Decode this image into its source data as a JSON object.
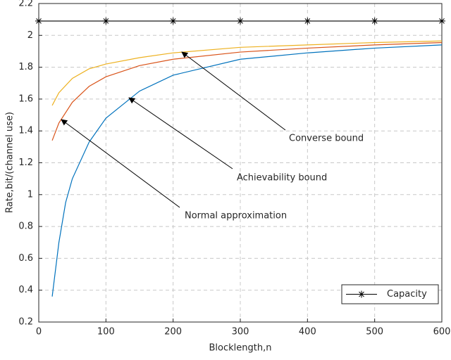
{
  "chart_data": {
    "type": "line",
    "xlabel": "Blocklength,n",
    "ylabel": "Rate,bit/(channel use)",
    "xlim": [
      0,
      600
    ],
    "xticks": [
      0,
      100,
      200,
      300,
      400,
      500,
      600
    ],
    "ylim": [
      0.2,
      2.2
    ],
    "yticks": [
      0.2,
      0.4,
      0.6,
      0.8,
      1,
      1.2,
      1.4,
      1.6,
      1.8,
      2,
      2.2
    ],
    "grid": true,
    "legend": "lower right",
    "series": [
      {
        "name": "Capacity",
        "color": "#000000",
        "marker": "star",
        "x": [
          0,
          100,
          200,
          300,
          400,
          500,
          600
        ],
        "values": [
          2.09,
          2.09,
          2.09,
          2.09,
          2.09,
          2.09,
          2.09
        ]
      },
      {
        "color": "#EDB120",
        "x": [
          20,
          30,
          50,
          75,
          100,
          150,
          200,
          300,
          400,
          500,
          600
        ],
        "values": [
          1.56,
          1.64,
          1.73,
          1.79,
          1.82,
          1.86,
          1.89,
          1.925,
          1.94,
          1.955,
          1.965
        ]
      },
      {
        "color": "#D95319",
        "x": [
          20,
          30,
          50,
          75,
          100,
          150,
          200,
          300,
          400,
          500,
          600
        ],
        "values": [
          1.34,
          1.45,
          1.58,
          1.68,
          1.74,
          1.81,
          1.85,
          1.895,
          1.92,
          1.94,
          1.955
        ]
      },
      {
        "color": "#0072BD",
        "x": [
          20,
          30,
          40,
          50,
          75,
          100,
          150,
          200,
          300,
          400,
          500,
          600
        ],
        "values": [
          0.36,
          0.7,
          0.95,
          1.1,
          1.33,
          1.48,
          1.65,
          1.75,
          1.85,
          1.89,
          1.92,
          1.94
        ]
      }
    ],
    "annotations": [
      "Converse bound",
      "Achievability bound",
      "Normal approximation"
    ]
  }
}
